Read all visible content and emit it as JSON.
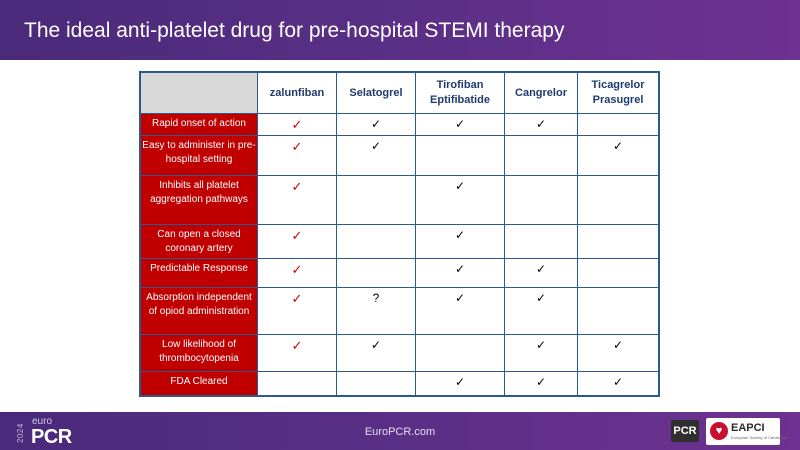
{
  "header": {
    "title": "The ideal anti-platelet drug for pre-hospital STEMI therapy"
  },
  "table": {
    "columns": [
      "zalunfiban",
      "Selatogrel",
      "Tirofiban\nEptifibatide",
      "Cangrelor",
      "Ticagrelor\nPrasugrel"
    ],
    "rows": [
      {
        "label": "Rapid onset of action",
        "cells": [
          "✓",
          "✓",
          "✓",
          "✓",
          ""
        ]
      },
      {
        "label": "Easy to administer in pre-hospital setting",
        "cells": [
          "✓",
          "✓",
          "",
          "",
          "✓"
        ]
      },
      {
        "label": "Inhibits all  platelet aggregation pathways",
        "cells": [
          "✓",
          "",
          "✓",
          "",
          ""
        ]
      },
      {
        "label": "Can open a closed coronary artery",
        "cells": [
          "✓",
          "",
          "✓",
          "",
          ""
        ]
      },
      {
        "label": "Predictable Response",
        "cells": [
          "✓",
          "",
          "✓",
          "✓",
          ""
        ]
      },
      {
        "label": "Absorption independent of opiod administration",
        "cells": [
          "✓",
          "?",
          "✓",
          "✓",
          ""
        ]
      },
      {
        "label": "Low likelihood of thrombocytopenia",
        "cells": [
          "✓",
          "✓",
          "",
          "✓",
          "✓"
        ]
      },
      {
        "label": "FDA Cleared",
        "cells": [
          "",
          "",
          "✓",
          "✓",
          "✓"
        ]
      }
    ]
  },
  "footer": {
    "url": "EuroPCR.com",
    "logo_year": "2024",
    "logo_euro": "euro",
    "logo_pcr": "PCR",
    "partner_pcr": "PCR",
    "partner_eapci": "EAPCI",
    "partner_eapci_sub": "European Society of Cardiology"
  },
  "colors": {
    "header_bg": "#5a2f86",
    "criteria_bg": "#c00000",
    "check_red": "#d40000",
    "table_border": "#2d5a8a",
    "column_header_text": "#1f3b6e"
  },
  "icons": {
    "check": "check-icon",
    "question": "question-mark"
  }
}
